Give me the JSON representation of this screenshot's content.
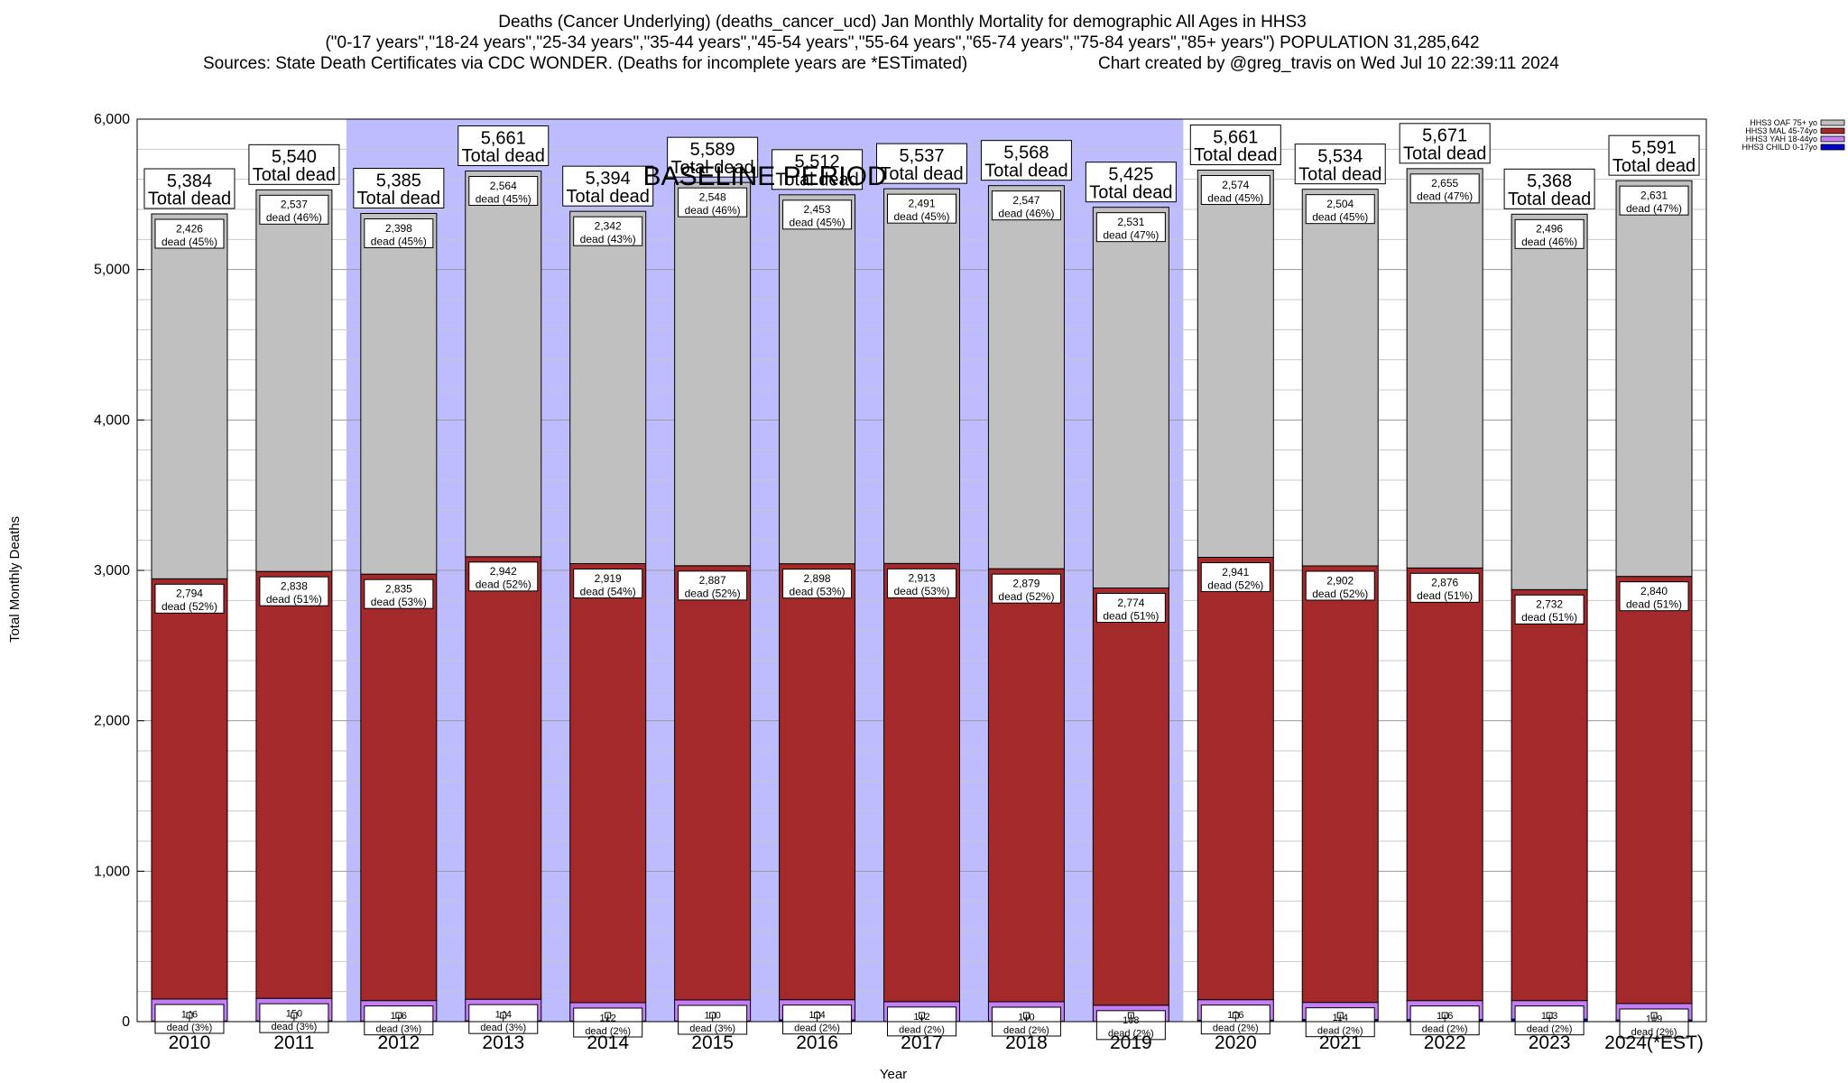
{
  "chart_data": {
    "type": "bar",
    "title_lines": [
      "Deaths (Cancer Underlying) (deaths_cancer_ucd) Jan Monthly Mortality for demographic All Ages in HHS3",
      "(\"0-17 years\",\"18-24 years\",\"25-34 years\",\"35-44 years\",\"45-54 years\",\"55-64 years\",\"65-74 years\",\"75-84 years\",\"85+ years\") POPULATION 31,285,642",
      "Sources: State Death Certificates via CDC WONDER. (Deaths for incomplete years are *ESTimated)",
      "Chart created by @greg_travis on Wed Jul 10 22:39:11 2024"
    ],
    "xlabel": "Year",
    "ylabel": "Total Monthly Deaths",
    "ylim": [
      0,
      6000
    ],
    "yticks": [
      0,
      1000,
      2000,
      3000,
      4000,
      5000,
      6000
    ],
    "ytick_labels": [
      "0",
      "1,000",
      "2,000",
      "3,000",
      "4,000",
      "5,000",
      "6,000"
    ],
    "categories": [
      "2010",
      "2011",
      "2012",
      "2013",
      "2014",
      "2015",
      "2016",
      "2017",
      "2018",
      "2019",
      "2020",
      "2021",
      "2022",
      "2023",
      "2024(*EST)"
    ],
    "baseline": {
      "label": "BASELINE PERIOD",
      "start": "2012",
      "end": "2019",
      "color": "#bcbcff"
    },
    "total_label_suffix": "Total dead",
    "totals": [
      5384,
      5540,
      5385,
      5661,
      5394,
      5589,
      5512,
      5537,
      5568,
      5425,
      5661,
      5534,
      5671,
      5368,
      5591
    ],
    "total_labels": [
      "5,384",
      "5,540",
      "5,385",
      "5,661",
      "5,394",
      "5,589",
      "5,512",
      "5,537",
      "5,568",
      "5,425",
      "5,661",
      "5,534",
      "5,671",
      "5,368",
      "5,591"
    ],
    "series": [
      {
        "name": "HHS3 CHILD 0-17yo",
        "color": "#0000cc",
        "values": [
          4,
          5,
          4,
          5,
          4,
          4,
          12,
          1,
          2,
          1,
          10,
          14,
          14,
          17,
          11
        ]
      },
      {
        "name": "HHS3 YAH 18-44yo",
        "color": "#c57ff5",
        "values": [
          146,
          150,
          136,
          144,
          122,
          140,
          134,
          132,
          130,
          108,
          136,
          114,
          126,
          123,
          109
        ],
        "labels": [
          "146",
          "150",
          "136",
          "144",
          "122",
          "140",
          "134",
          "132",
          "130",
          "108",
          "136",
          "114",
          "126",
          "123",
          "109"
        ],
        "pct_labels": [
          "dead (3%)",
          "dead (3%)",
          "dead (3%)",
          "dead (3%)",
          "dead (2%)",
          "dead (3%)",
          "dead (2%)",
          "dead (2%)",
          "dead (2%)",
          "dead (2%)",
          "dead (2%)",
          "dead (2%)",
          "dead (2%)",
          "dead (2%)",
          "dead (2%)"
        ]
      },
      {
        "name": "HHS3 MAL 45-74yo",
        "color": "#a3292a",
        "values": [
          2794,
          2838,
          2835,
          2942,
          2919,
          2887,
          2898,
          2913,
          2879,
          2774,
          2941,
          2902,
          2876,
          2732,
          2840
        ],
        "labels": [
          "2,794",
          "2,838",
          "2,835",
          "2,942",
          "2,919",
          "2,887",
          "2,898",
          "2,913",
          "2,879",
          "2,774",
          "2,941",
          "2,902",
          "2,876",
          "2,732",
          "2,840"
        ],
        "pct_labels": [
          "dead (52%)",
          "dead (51%)",
          "dead (53%)",
          "dead (52%)",
          "dead (54%)",
          "dead (52%)",
          "dead (53%)",
          "dead (53%)",
          "dead (52%)",
          "dead (51%)",
          "dead (52%)",
          "dead (52%)",
          "dead (51%)",
          "dead (51%)",
          "dead (51%)"
        ]
      },
      {
        "name": "HHS3 OAF 75+ yo",
        "color": "#c0c0c0",
        "values": [
          2426,
          2537,
          2398,
          2564,
          2342,
          2548,
          2453,
          2491,
          2547,
          2531,
          2574,
          2504,
          2655,
          2496,
          2631
        ],
        "labels": [
          "2,426",
          "2,537",
          "2,398",
          "2,564",
          "2,342",
          "2,548",
          "2,453",
          "2,491",
          "2,547",
          "2,531",
          "2,574",
          "2,504",
          "2,655",
          "2,496",
          "2,631"
        ],
        "pct_labels": [
          "dead (45%)",
          "dead (46%)",
          "dead (45%)",
          "dead (45%)",
          "dead (43%)",
          "dead (46%)",
          "dead (45%)",
          "dead (45%)",
          "dead (46%)",
          "dead (47%)",
          "dead (45%)",
          "dead (45%)",
          "dead (47%)",
          "dead (46%)",
          "dead (47%)"
        ]
      }
    ],
    "legend": {
      "position": "top-right",
      "entries": [
        "HHS3 OAF 75+ yo",
        "HHS3 MAL 45-74yo",
        "HHS3 YAH 18-44yo",
        "HHS3 CHILD 0-17yo"
      ],
      "colors": [
        "#c0c0c0",
        "#a3292a",
        "#c57ff5",
        "#0000cc"
      ]
    },
    "grid": true
  }
}
